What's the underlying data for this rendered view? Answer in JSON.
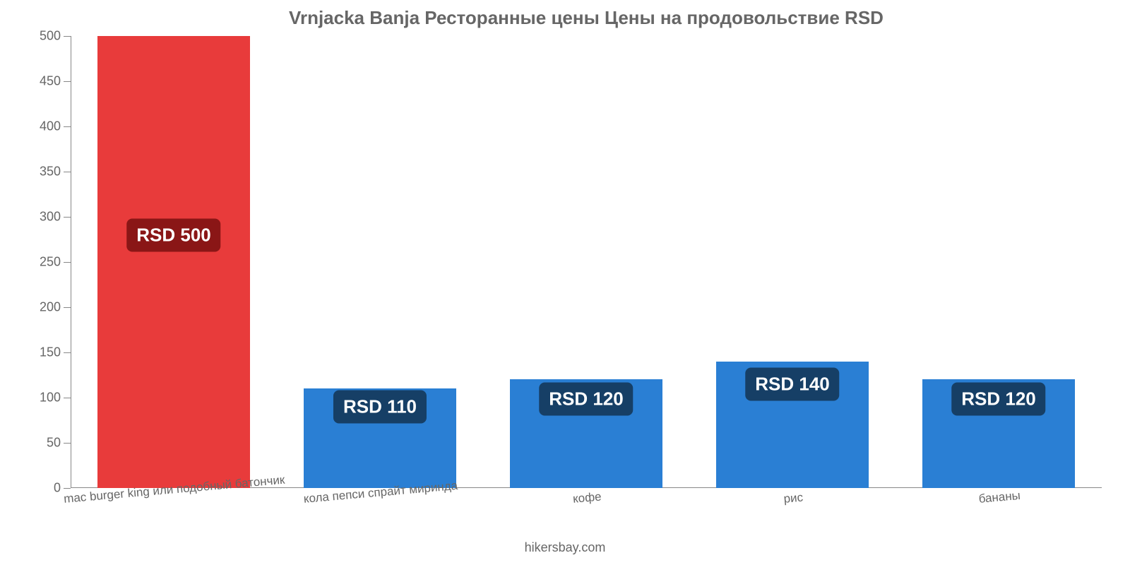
{
  "chart": {
    "type": "bar",
    "title": "Vrnjacka Banja Ресторанные цены Цены на продовольствие RSD",
    "title_fontsize": 26,
    "title_color": "#666666",
    "background_color": "#ffffff",
    "axis_color": "#888888",
    "tick_label_color": "#666666",
    "attribution": "hikersbay.com",
    "attribution_fontsize": 18,
    "currency_prefix": "RSD ",
    "ylim": [
      0,
      500
    ],
    "ytick_step": 50,
    "yticks": [
      0,
      50,
      100,
      150,
      200,
      250,
      300,
      350,
      400,
      450,
      500
    ],
    "ytick_fontsize": 18,
    "bar_width_pct": 74,
    "value_badge": {
      "fontsize": 26,
      "text_color": "#ffffff",
      "radius": 8
    },
    "category_label": {
      "fontsize": 17,
      "color": "#666666",
      "rotation_deg": -5
    },
    "categories": [
      {
        "label": "mac burger king или подобный батончик",
        "value": 500,
        "value_label": "RSD 500",
        "bar_color": "#e83b3b",
        "badge_bg": "#8a1616"
      },
      {
        "label": "кола пепси спрайт миринда",
        "value": 110,
        "value_label": "RSD 110",
        "bar_color": "#2a7fd4",
        "badge_bg": "#163f66"
      },
      {
        "label": "кофе",
        "value": 120,
        "value_label": "RSD 120",
        "bar_color": "#2a7fd4",
        "badge_bg": "#163f66"
      },
      {
        "label": "рис",
        "value": 140,
        "value_label": "RSD 140",
        "bar_color": "#2a7fd4",
        "badge_bg": "#163f66"
      },
      {
        "label": "бананы",
        "value": 120,
        "value_label": "RSD 120",
        "bar_color": "#2a7fd4",
        "badge_bg": "#163f66"
      }
    ]
  }
}
